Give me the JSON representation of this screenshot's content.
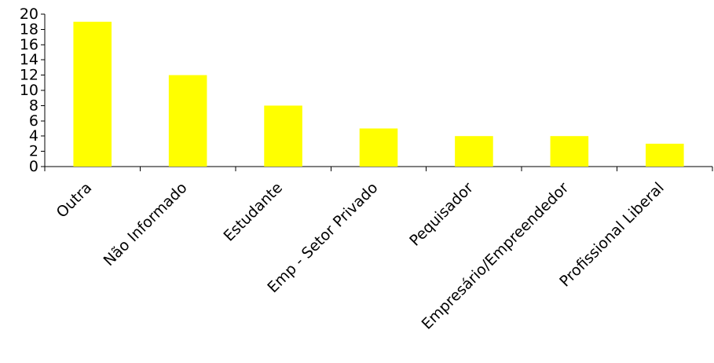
{
  "chart_data": {
    "type": "bar",
    "categories": [
      "Outra",
      "Não Informado",
      "Estudante",
      "Emp - Setor Privado",
      "Pequisador",
      "Empresário/Empreendedor",
      "Profissional Liberal"
    ],
    "values": [
      19,
      12,
      8,
      5,
      4,
      4,
      3
    ],
    "yticks": [
      "0",
      "2",
      "4",
      "6",
      "8",
      "10",
      "12",
      "14",
      "16",
      "18",
      "20"
    ],
    "ylim": [
      0,
      20
    ],
    "bar_color": "#ffff00",
    "axis_color": "#000000",
    "grid": false,
    "legend": "none"
  }
}
